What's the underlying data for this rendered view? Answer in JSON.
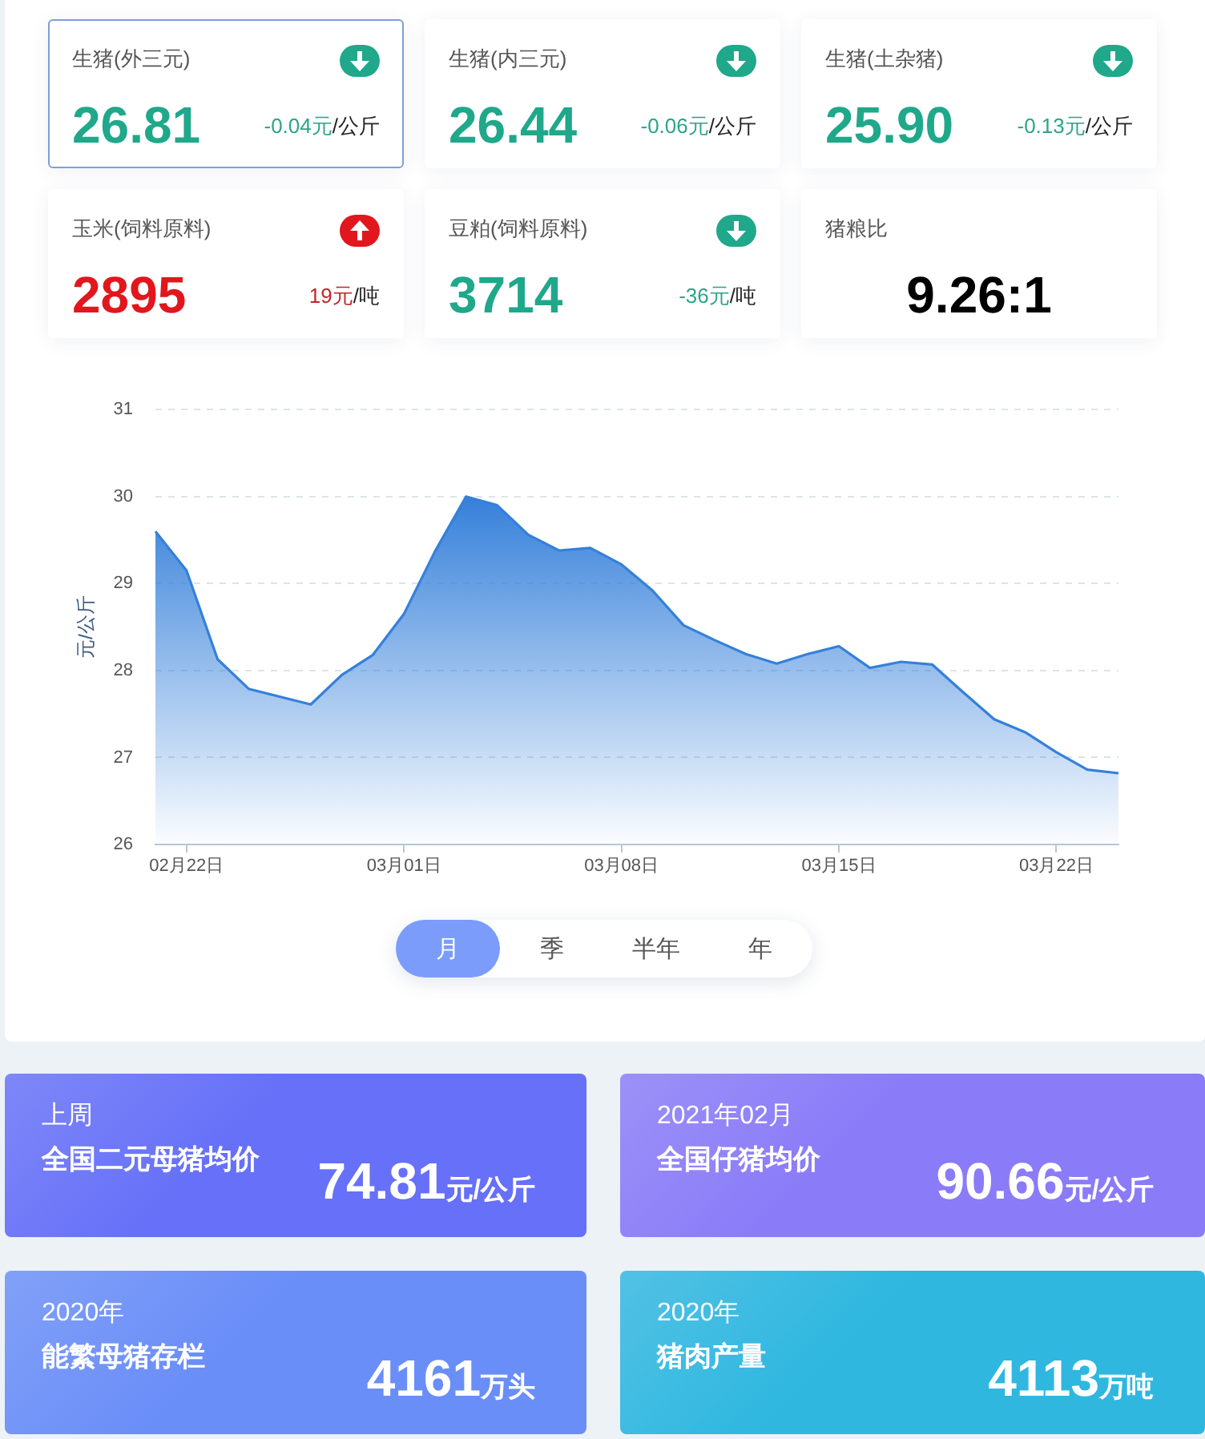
{
  "chart_data": [
    {
      "type": "other",
      "title": "生猪(外三元)",
      "annotations": [
        "26.81",
        "-0.04元",
        "/公斤"
      ],
      "colors": [
        "#1fa88a",
        "#2fa488"
      ]
    },
    {
      "type": "other",
      "title": "生猪(内三元)",
      "annotations": [
        "26.44",
        "-0.06元",
        "/公斤"
      ],
      "colors": [
        "#1fa88a",
        "#2fa488"
      ]
    },
    {
      "type": "other",
      "title": "生猪(土杂猪)",
      "annotations": [
        "25.90",
        "-0.13元",
        "/公斤"
      ],
      "colors": [
        "#1fa88a",
        "#2fa488"
      ]
    },
    {
      "type": "other",
      "title": "玉米(饲料原料)",
      "annotations": [
        "2895",
        "19元",
        "/吨"
      ],
      "colors": [
        "#e1171d",
        "#c1272d"
      ]
    },
    {
      "type": "other",
      "title": "豆粕(饲料原料)",
      "annotations": [
        "3714",
        "-36元",
        "/吨"
      ],
      "colors": [
        "#1fa88a",
        "#2fa488"
      ]
    },
    {
      "type": "other",
      "title": "猪粮比",
      "annotations": [
        "9.26:1"
      ],
      "colors": [
        "#000000"
      ]
    },
    {
      "type": "area",
      "ylabel": "元/公斤",
      "categories": [
        null,
        "02月22日",
        null,
        null,
        null,
        null,
        null,
        null,
        "03月01日",
        null,
        null,
        null,
        null,
        null,
        null,
        "03月08日",
        null,
        null,
        null,
        null,
        null,
        null,
        "03月15日",
        null,
        null,
        null,
        null,
        null,
        null,
        "03月22日",
        null,
        null
      ],
      "values": [
        29.6,
        29.15,
        28.13,
        27.79,
        27.7,
        27.61,
        27.95,
        28.18,
        28.65,
        29.37,
        30.0,
        29.9,
        29.56,
        29.38,
        29.41,
        29.22,
        28.92,
        28.52,
        28.35,
        28.19,
        28.08,
        28.19,
        28.28,
        28.03,
        28.1,
        28.07,
        27.75,
        27.44,
        27.29,
        27.06,
        26.86,
        26.82
      ],
      "color": "#3580da",
      "ylim": [
        26,
        31
      ],
      "yticks": [
        26,
        27,
        28,
        29,
        30,
        31
      ],
      "grid": "y",
      "marker": "none",
      "line_style": "solid"
    },
    {
      "type": "other",
      "annotations": [
        "月",
        "季",
        "半年",
        "年"
      ]
    },
    {
      "type": "other",
      "subtitle": "上周",
      "title": "全国二元母猪均价",
      "annotations": [
        "74.81",
        "元/公斤"
      ],
      "color": "#6670f8"
    },
    {
      "type": "other",
      "subtitle": "2021年02月",
      "title": "全国仔猪均价",
      "annotations": [
        "90.66",
        "元/公斤"
      ],
      "color": "#8a7bf8"
    },
    {
      "type": "other",
      "subtitle": "2020年",
      "title": "能繁母猪存栏",
      "annotations": [
        "4161",
        "万头"
      ],
      "color": "#6a8ef8"
    },
    {
      "type": "other",
      "subtitle": "2020年",
      "title": "猪肉产量",
      "annotations": [
        "4113",
        "万吨"
      ],
      "color": "#2fb7e0"
    }
  ]
}
